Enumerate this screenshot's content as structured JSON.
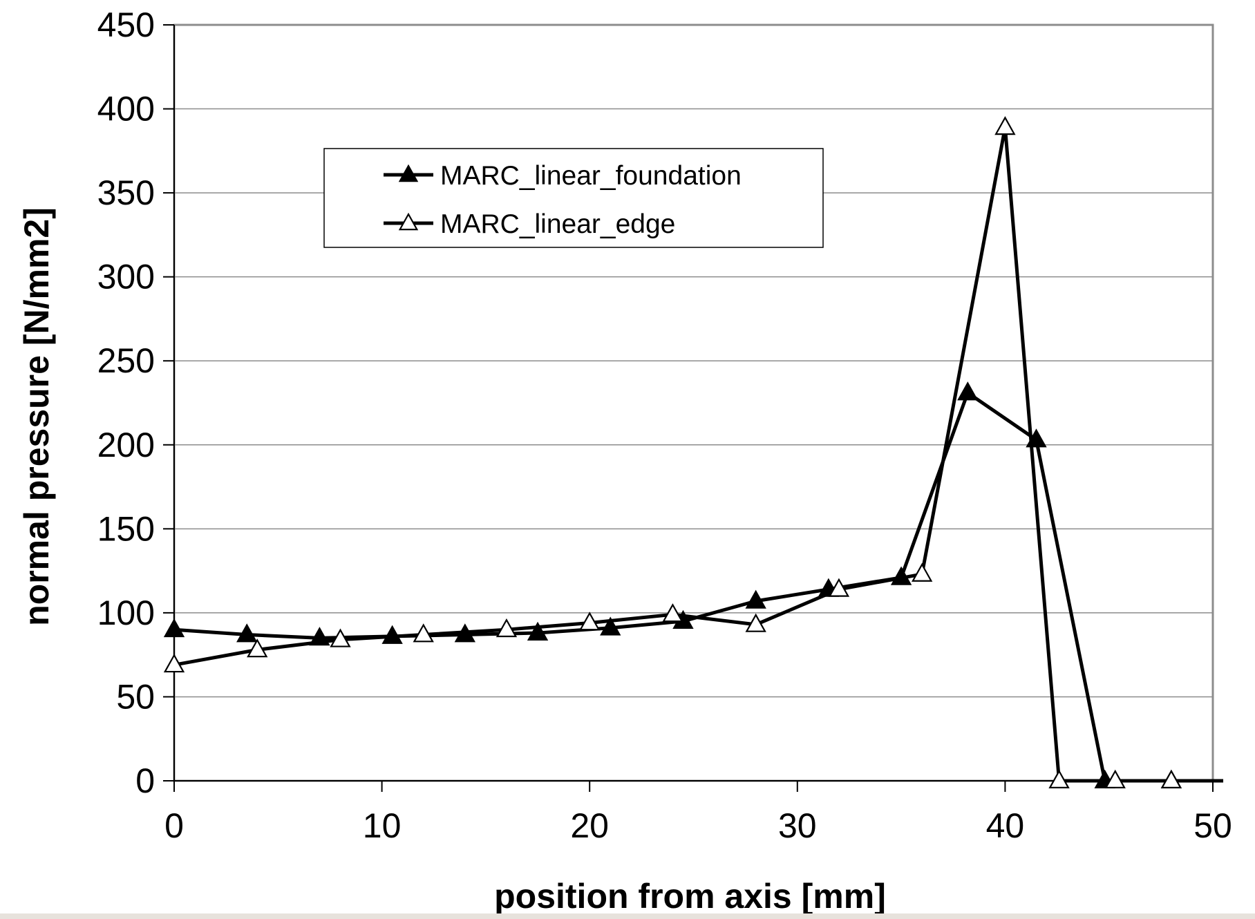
{
  "chart_data": {
    "type": "line",
    "title": "",
    "xlabel": "position from axis [mm]",
    "ylabel": "normal pressure [N/mm2]",
    "xlim": [
      0,
      50
    ],
    "ylim": [
      0,
      450
    ],
    "xticks": [
      0,
      10,
      20,
      30,
      40,
      50
    ],
    "yticks": [
      0,
      50,
      100,
      150,
      200,
      250,
      300,
      350,
      400,
      450
    ],
    "grid": "horizontal",
    "legend_position": "top-left",
    "series": [
      {
        "name": "MARC_linear_foundation",
        "marker": "filled-triangle",
        "color": "#000000",
        "points": [
          [
            0,
            90
          ],
          [
            3.5,
            87
          ],
          [
            7,
            85
          ],
          [
            10.5,
            86
          ],
          [
            14,
            87
          ],
          [
            17.5,
            88
          ],
          [
            21,
            91
          ],
          [
            24.5,
            95
          ],
          [
            28,
            107
          ],
          [
            31.5,
            114
          ],
          [
            35,
            121
          ],
          [
            38.2,
            231
          ],
          [
            41.5,
            203
          ],
          [
            44.8,
            0
          ],
          [
            48,
            0
          ],
          [
            50.5,
            0
          ]
        ]
      },
      {
        "name": "MARC_linear_edge",
        "marker": "open-triangle",
        "color": "#000000",
        "points": [
          [
            0,
            69
          ],
          [
            4,
            78
          ],
          [
            8,
            84
          ],
          [
            12,
            87
          ],
          [
            16,
            90
          ],
          [
            20,
            94
          ],
          [
            24,
            99
          ],
          [
            28,
            93
          ],
          [
            32,
            114
          ],
          [
            36,
            123
          ],
          [
            40,
            389
          ],
          [
            42.6,
            0
          ],
          [
            45.3,
            0
          ],
          [
            48,
            0
          ]
        ]
      }
    ]
  }
}
